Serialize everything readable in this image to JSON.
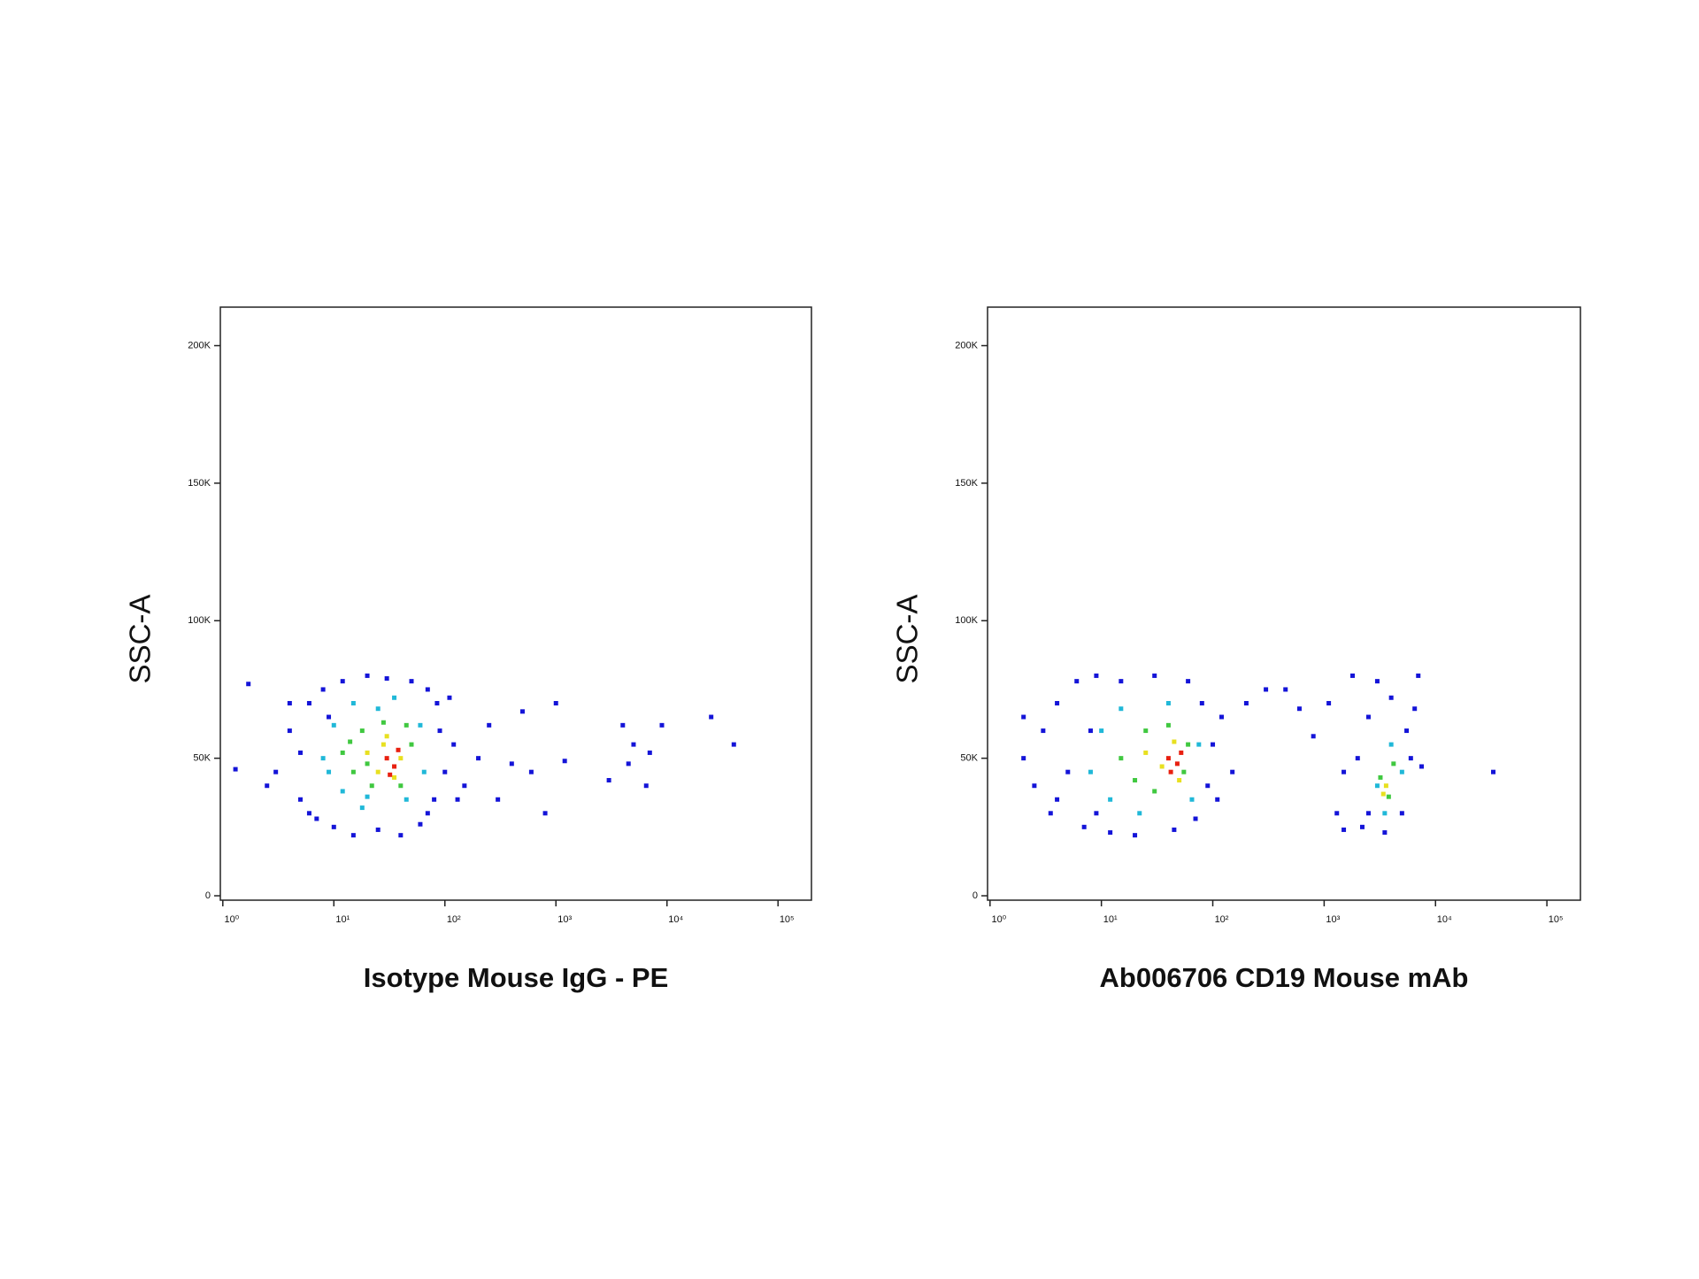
{
  "chart_data": [
    {
      "type": "scatter",
      "xlabel": "Isotype Mouse IgG - PE",
      "ylabel": "SSC-A",
      "xscale": "log",
      "xlim": [
        0.95,
        200000
      ],
      "ylim": [
        -1600,
        214000
      ],
      "xticks": [
        {
          "value": 1,
          "label": "10⁰"
        },
        {
          "value": 10,
          "label": "10¹"
        },
        {
          "value": 100,
          "label": "10²"
        },
        {
          "value": 1000,
          "label": "10³"
        },
        {
          "value": 10000,
          "label": "10⁴"
        },
        {
          "value": 100000,
          "label": "10⁵"
        }
      ],
      "yticks": [
        0,
        {
          "value": 50000,
          "label": "50K"
        },
        {
          "value": 100000,
          "label": "100K"
        },
        {
          "value": 150000,
          "label": "150K"
        },
        {
          "value": 200000,
          "label": "200K"
        }
      ],
      "series": [
        {
          "color": "#1414d8",
          "x": [
            3,
            4,
            5,
            6,
            5,
            7,
            8,
            10,
            12,
            15,
            20,
            25,
            30,
            40,
            50,
            60,
            70,
            80,
            90,
            100,
            120,
            150,
            200,
            250,
            300,
            400,
            500,
            600,
            800,
            1000,
            1200,
            3000,
            4000,
            5000,
            7000,
            9000,
            25000,
            40000,
            1.3,
            1.7,
            2.5,
            4,
            6,
            9,
            70,
            85,
            110,
            130,
            4500,
            6500
          ],
          "values": [
            45000,
            60000,
            35000,
            70000,
            52000,
            28000,
            75000,
            25000,
            78000,
            22000,
            80000,
            24000,
            79000,
            22000,
            78000,
            26000,
            75000,
            35000,
            60000,
            45000,
            55000,
            40000,
            50000,
            62000,
            35000,
            48000,
            67000,
            45000,
            30000,
            70000,
            49000,
            42000,
            62000,
            55000,
            52000,
            62000,
            65000,
            55000,
            46000,
            77000,
            40000,
            70000,
            30000,
            65000,
            30000,
            70000,
            72000,
            35000,
            48000,
            40000
          ]
        },
        {
          "color": "#20b8d8",
          "x": [
            8,
            10,
            12,
            15,
            18,
            25,
            45,
            60,
            65,
            9,
            35,
            20
          ],
          "values": [
            50000,
            62000,
            38000,
            70000,
            32000,
            68000,
            35000,
            62000,
            45000,
            45000,
            72000,
            36000
          ]
        },
        {
          "color": "#40c840",
          "x": [
            12,
            15,
            18,
            22,
            28,
            40,
            50,
            45,
            14,
            20
          ],
          "values": [
            52000,
            45000,
            60000,
            40000,
            63000,
            40000,
            55000,
            62000,
            56000,
            48000
          ]
        },
        {
          "color": "#e8e020",
          "x": [
            20,
            25,
            30,
            40,
            35,
            28
          ],
          "values": [
            52000,
            45000,
            58000,
            50000,
            43000,
            55000
          ]
        },
        {
          "color": "#e82010",
          "x": [
            30,
            35,
            38,
            32
          ],
          "values": [
            50000,
            47000,
            53000,
            44000
          ]
        }
      ]
    },
    {
      "type": "scatter",
      "xlabel": "Ab006706 CD19 Mouse mAb",
      "ylabel": "SSC-A",
      "xscale": "log",
      "xlim": [
        0.95,
        200000
      ],
      "ylim": [
        -1600,
        214000
      ],
      "xticks": [
        {
          "value": 1,
          "label": "10⁰"
        },
        {
          "value": 10,
          "label": "10¹"
        },
        {
          "value": 100,
          "label": "10²"
        },
        {
          "value": 1000,
          "label": "10³"
        },
        {
          "value": 10000,
          "label": "10⁴"
        },
        {
          "value": 100000,
          "label": "10⁵"
        }
      ],
      "yticks": [
        0,
        {
          "value": 50000,
          "label": "50K"
        },
        {
          "value": 100000,
          "label": "100K"
        },
        {
          "value": 150000,
          "label": "150K"
        },
        {
          "value": 200000,
          "label": "200K"
        }
      ],
      "series": [
        {
          "color": "#1414d8",
          "x": [
            2,
            2.5,
            3,
            3.5,
            4,
            5,
            6,
            7,
            9,
            12,
            15,
            20,
            30,
            45,
            60,
            70,
            80,
            90,
            100,
            120,
            150,
            200,
            300,
            450,
            600,
            800,
            1100,
            1300,
            1500,
            1800,
            2000,
            2200,
            2500,
            3000,
            3500,
            4000,
            5000,
            5500,
            6000,
            7000,
            7500,
            33000,
            4,
            8,
            2,
            9,
            110,
            6500,
            1500,
            2500
          ],
          "values": [
            50000,
            40000,
            60000,
            30000,
            70000,
            45000,
            78000,
            25000,
            80000,
            23000,
            78000,
            22000,
            80000,
            24000,
            78000,
            28000,
            70000,
            40000,
            55000,
            65000,
            45000,
            70000,
            75000,
            75000,
            68000,
            58000,
            70000,
            30000,
            24000,
            80000,
            50000,
            25000,
            65000,
            78000,
            23000,
            72000,
            30000,
            60000,
            50000,
            80000,
            47000,
            45000,
            35000,
            60000,
            65000,
            30000,
            35000,
            68000,
            45000,
            30000
          ]
        },
        {
          "color": "#20b8d8",
          "x": [
            8,
            10,
            12,
            15,
            22,
            40,
            65,
            75,
            3000,
            4000,
            3500,
            5000
          ],
          "values": [
            45000,
            60000,
            35000,
            68000,
            30000,
            70000,
            35000,
            55000,
            40000,
            55000,
            30000,
            45000
          ]
        },
        {
          "color": "#40c840",
          "x": [
            15,
            20,
            25,
            30,
            40,
            55,
            60,
            3200,
            3800,
            4200
          ],
          "values": [
            50000,
            42000,
            60000,
            38000,
            62000,
            45000,
            55000,
            43000,
            36000,
            48000
          ]
        },
        {
          "color": "#e8e020",
          "x": [
            25,
            35,
            45,
            50,
            3600,
            3400
          ],
          "values": [
            52000,
            47000,
            56000,
            42000,
            40000,
            37000
          ]
        },
        {
          "color": "#e82010",
          "x": [
            40,
            48,
            42,
            52
          ],
          "values": [
            50000,
            48000,
            45000,
            52000
          ]
        }
      ]
    }
  ]
}
